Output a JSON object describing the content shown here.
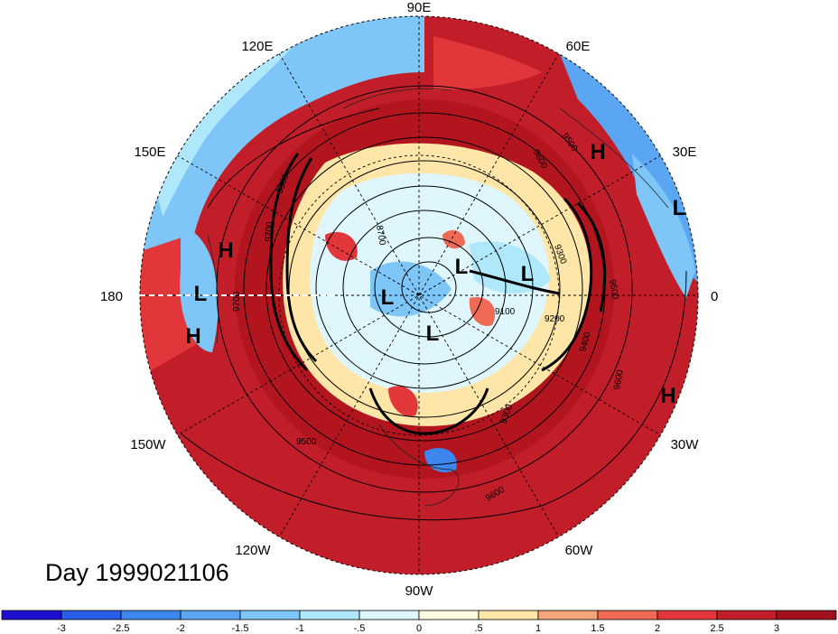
{
  "title": "Day 1999021106",
  "longitude_labels": [
    "90E",
    "120E",
    "60E",
    "150E",
    "30E",
    "180",
    "0",
    "150W",
    "30W",
    "120W",
    "60W",
    "90W"
  ],
  "pressure_labels": [
    {
      "name": "H",
      "id": "h1"
    },
    {
      "name": "H",
      "id": "h2"
    },
    {
      "name": "H",
      "id": "h3"
    },
    {
      "name": "H",
      "id": "h4"
    },
    {
      "name": "L",
      "id": "l1"
    },
    {
      "name": "L",
      "id": "l2"
    },
    {
      "name": "L",
      "id": "l3"
    },
    {
      "name": "L",
      "id": "l4"
    },
    {
      "name": "L",
      "id": "l5"
    },
    {
      "name": "L",
      "id": "l6"
    }
  ],
  "contour_labels": [
    "9800",
    "9700",
    "9600",
    "9500",
    "9700",
    "9400",
    "9300",
    "9100",
    "9200",
    "9300",
    "9500",
    "9600",
    "9500",
    "9600",
    "8700"
  ],
  "colorbar": {
    "ticks": [
      "-3",
      "-2.5",
      "-2",
      "-1.5",
      "-1",
      "-.5",
      "0",
      ".5",
      "1",
      "1.5",
      "2",
      "2.5",
      "3"
    ],
    "colors": [
      "#1e0fd0",
      "#2a5ee6",
      "#3d86ee",
      "#5aa6f2",
      "#7ec6f7",
      "#b0e8fb",
      "#dff7fc",
      "#fffde0",
      "#fde6a8",
      "#f6a47a",
      "#ef6b55",
      "#e2373a",
      "#c21e2a",
      "#a0101e"
    ]
  },
  "colors": {
    "strong_positive": "#b3151f",
    "positive": "#df3c3b",
    "weak_positive": "#f4a07a",
    "neutral": "#fff6d8",
    "weak_negative": "#aadcf6",
    "negative": "#5aa6f2"
  }
}
